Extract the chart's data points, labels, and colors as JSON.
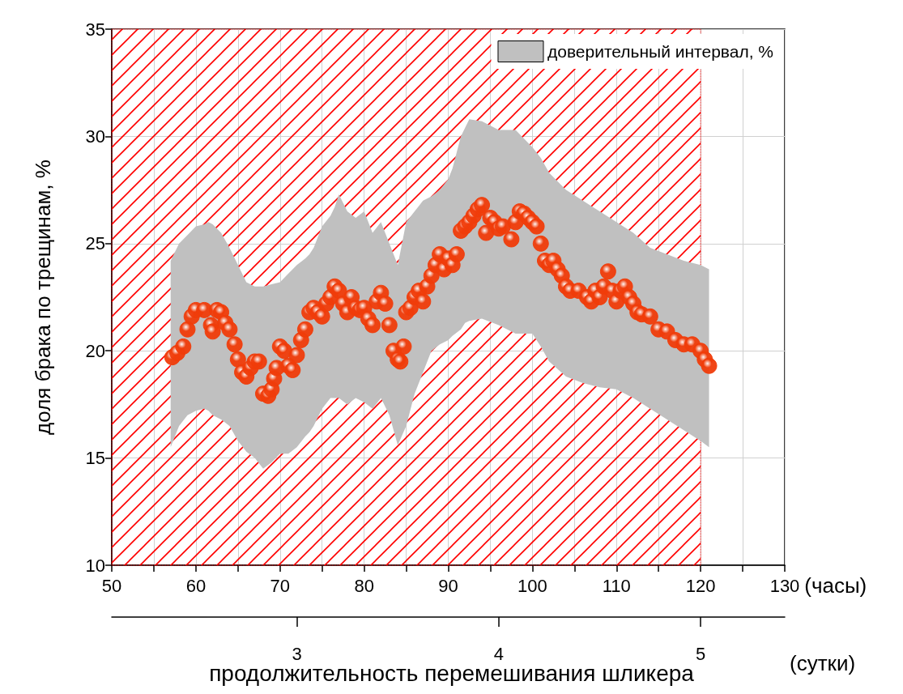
{
  "chart_data": {
    "type": "scatter",
    "ylabel": "доля брака по трещинам, %",
    "xlabel": "(часы)",
    "x2label": "(сутки)",
    "annotations": [
      "продолжительность перемешивания шликера"
    ],
    "xlim": [
      50,
      130
    ],
    "xticks": [
      50,
      {
        "value": 55,
        "label": null
      },
      60,
      {
        "value": 65,
        "label": null
      },
      70,
      {
        "value": 75,
        "label": null
      },
      80,
      {
        "value": 85,
        "label": null
      },
      90,
      {
        "value": 95,
        "label": null
      },
      100,
      {
        "value": 105,
        "label": null
      },
      110,
      {
        "value": 115,
        "label": null
      },
      120,
      {
        "value": 125,
        "label": null
      },
      130
    ],
    "x2lim": [
      2.0833,
      5.4167
    ],
    "x2ticks": [
      3,
      4,
      5
    ],
    "ylim": [
      10,
      35
    ],
    "yticks": [
      10,
      15,
      20,
      25,
      30,
      35
    ],
    "grid": true,
    "legend": "top right",
    "marker": "circle",
    "bands": [
      {
        "axis": "x",
        "from": 50,
        "to": 120,
        "color": "#ff0000"
      }
    ],
    "series": [
      {
        "type": "area",
        "name": "доверительный интервал, %",
        "color": "#c0c0c0",
        "x": [
          57,
          58,
          59,
          60,
          61,
          61.5,
          62,
          63,
          64,
          65,
          66,
          67,
          68,
          69,
          70,
          71,
          72,
          73,
          73.5,
          74,
          75,
          76,
          76.5,
          77,
          78,
          79,
          80,
          81,
          82,
          83,
          84,
          85,
          86,
          87,
          88,
          89,
          90,
          90.5,
          91.5,
          92,
          92.5,
          94,
          96,
          98,
          100,
          101,
          102,
          104,
          106,
          108,
          110,
          112,
          114,
          116,
          118,
          120,
          121
        ],
        "values": [
          null,
          null,
          null,
          null,
          null,
          null,
          null,
          null,
          null,
          null,
          null,
          null,
          null,
          null,
          null,
          null,
          null,
          null,
          null,
          null,
          null,
          null,
          null,
          null,
          null,
          null,
          null,
          null,
          null,
          null,
          null,
          null,
          null,
          null,
          null,
          null,
          null,
          null,
          null,
          null,
          null,
          null,
          null,
          null,
          null,
          null,
          null,
          null,
          null,
          null,
          null,
          null,
          null,
          null,
          null,
          null,
          null
        ],
        "upper": [
          24.2,
          25.0,
          25.4,
          25.8,
          25.9,
          26.0,
          25.9,
          25.5,
          24.8,
          24.0,
          23.2,
          23.0,
          23.0,
          23.1,
          23.2,
          23.6,
          24.0,
          24.3,
          24.5,
          24.8,
          25.8,
          26.3,
          26.7,
          27.3,
          26.5,
          26.2,
          26.5,
          25.5,
          26.0,
          25.0,
          24.0,
          26.0,
          26.5,
          27.0,
          27.2,
          27.5,
          28.0,
          28.5,
          30.0,
          30.4,
          30.8,
          30.7,
          30.3,
          30.3,
          29.5,
          29.0,
          28.3,
          27.5,
          27.0,
          26.5,
          26.0,
          25.5,
          24.8,
          24.5,
          24.2,
          24.0,
          23.8
        ],
        "lower": [
          15.5,
          16.5,
          17.0,
          17.2,
          17.3,
          17.2,
          17.0,
          16.8,
          16.5,
          15.8,
          15.3,
          15.0,
          14.5,
          14.8,
          15.2,
          15.2,
          15.5,
          16.0,
          16.2,
          16.5,
          17.3,
          17.8,
          17.8,
          17.8,
          17.5,
          17.8,
          17.6,
          17.3,
          17.8,
          17.0,
          15.6,
          16.5,
          18.0,
          19.0,
          20.0,
          20.3,
          20.5,
          20.7,
          21.0,
          21.3,
          21.4,
          21.5,
          21.2,
          20.8,
          20.8,
          20.2,
          19.5,
          18.8,
          18.5,
          18.3,
          18.2,
          17.8,
          17.3,
          16.8,
          16.3,
          15.8,
          15.5
        ]
      },
      {
        "type": "scatter",
        "color": "#f03c0a",
        "x": [
          57.2,
          57.8,
          58.5,
          59.0,
          59.5,
          60.0,
          61.0,
          61.8,
          62.0,
          62.5,
          63.0,
          63.5,
          64.0,
          64.6,
          65.0,
          65.5,
          66.0,
          66.5,
          67.0,
          67.5,
          68.0,
          68.6,
          69.0,
          69.3,
          69.6,
          70.0,
          70.5,
          71.0,
          71.5,
          72.0,
          72.5,
          73.0,
          73.5,
          74.0,
          74.5,
          75.0,
          75.5,
          76.0,
          76.5,
          77.0,
          77.5,
          78.0,
          78.5,
          79.0,
          79.5,
          80.0,
          80.5,
          81.0,
          81.5,
          82.0,
          82.5,
          83.0,
          83.5,
          84.0,
          84.3,
          84.7,
          85.0,
          85.5,
          86.0,
          86.5,
          87.0,
          87.5,
          88.0,
          88.5,
          89.0,
          89.5,
          90.0,
          90.5,
          91.0,
          91.5,
          92.0,
          92.5,
          93.0,
          93.5,
          94.0,
          94.5,
          95.0,
          95.5,
          96.0,
          96.5,
          97.5,
          98.0,
          98.5,
          99.0,
          99.5,
          100.0,
          100.5,
          101.0,
          101.5,
          102.0,
          102.5,
          103.0,
          103.5,
          104.0,
          104.5,
          105.5,
          106.5,
          107.0,
          107.5,
          108.0,
          108.5,
          109.0,
          109.5,
          110.0,
          110.5,
          111.0,
          111.5,
          112.0,
          112.5,
          113.0,
          114.0,
          115.0,
          116.0,
          117.0,
          118.0,
          119.0,
          120.0,
          120.5,
          121.0
        ],
        "values": [
          19.7,
          19.9,
          20.2,
          21.0,
          21.6,
          21.9,
          21.9,
          21.2,
          20.9,
          21.9,
          21.8,
          21.3,
          21.0,
          20.3,
          19.6,
          19.0,
          18.8,
          19.2,
          19.5,
          19.5,
          18.0,
          17.9,
          18.2,
          18.7,
          19.2,
          20.2,
          20.0,
          19.3,
          19.1,
          19.8,
          20.5,
          21.0,
          21.8,
          22.0,
          21.8,
          21.6,
          22.2,
          22.5,
          23.0,
          22.8,
          22.2,
          21.8,
          22.5,
          22.0,
          21.9,
          22.0,
          21.5,
          21.2,
          22.3,
          22.7,
          22.2,
          21.2,
          20.0,
          19.6,
          19.5,
          20.2,
          21.8,
          22.0,
          22.5,
          22.8,
          22.3,
          23.0,
          23.5,
          24.0,
          24.5,
          23.8,
          24.3,
          24.0,
          24.5,
          25.6,
          25.8,
          26.0,
          26.3,
          26.6,
          26.8,
          25.5,
          26.2,
          26.0,
          25.7,
          25.8,
          25.2,
          26.0,
          26.5,
          26.4,
          26.2,
          26.0,
          25.8,
          25.0,
          24.2,
          24.0,
          24.2,
          23.8,
          23.5,
          23.0,
          22.8,
          22.8,
          22.5,
          22.3,
          22.8,
          22.5,
          23.0,
          23.7,
          22.8,
          22.3,
          22.8,
          23.0,
          22.5,
          22.2,
          21.8,
          21.7,
          21.6,
          21.0,
          20.9,
          20.5,
          20.3,
          20.3,
          20.0,
          19.6,
          19.3
        ]
      }
    ]
  }
}
